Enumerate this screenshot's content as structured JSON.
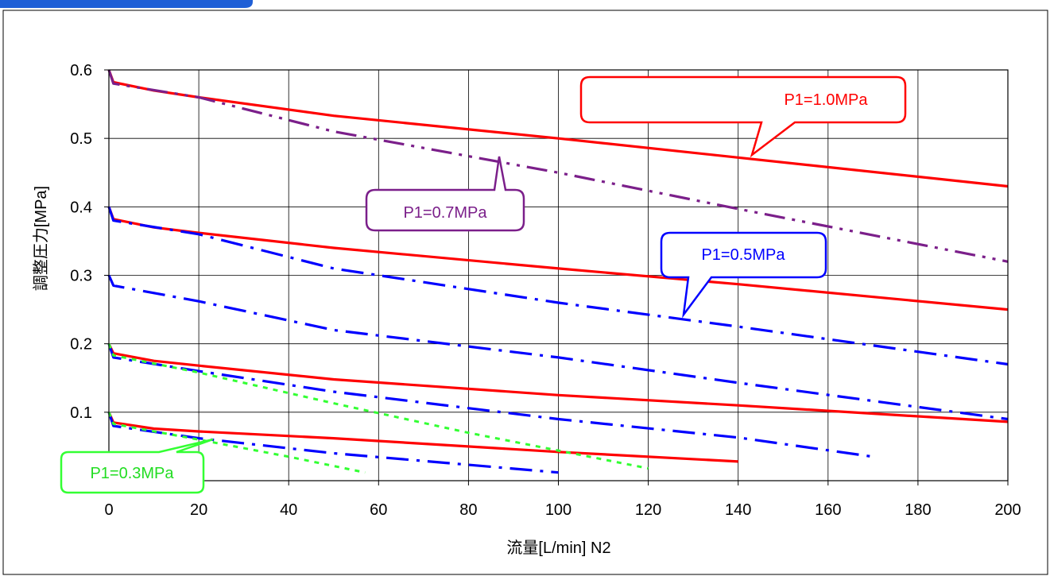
{
  "header_tab": "",
  "chart_data": {
    "type": "line",
    "title": "",
    "xlabel": "流量[L/min] N2",
    "ylabel": "調整圧力[MPa]",
    "xlim": [
      0,
      200
    ],
    "ylim": [
      0,
      0.6
    ],
    "x_ticks": [
      0,
      20,
      40,
      60,
      80,
      100,
      120,
      140,
      160,
      180,
      200
    ],
    "y_ticks": [
      0.1,
      0.2,
      0.3,
      0.4,
      0.5,
      0.6
    ],
    "y_tick_labels": [
      "0.1",
      "0.2",
      "0.3",
      "0.4",
      "0.5",
      "0.6"
    ],
    "grid": true,
    "colors": {
      "p1_1_0": "#ff0000",
      "p1_0_7": "#7b1f8a",
      "p1_0_5": "#0000ff",
      "p1_0_3": "#33ff33"
    },
    "series": [
      {
        "group": "p1_1_0",
        "style": "solid",
        "x": [
          0,
          1,
          10,
          20,
          50,
          100,
          140,
          200
        ],
        "y": [
          0.6,
          0.582,
          0.57,
          0.56,
          0.533,
          0.5,
          0.472,
          0.43
        ]
      },
      {
        "group": "p1_1_0",
        "style": "solid",
        "x": [
          0,
          1,
          10,
          20,
          50,
          100,
          140,
          200
        ],
        "y": [
          0.4,
          0.382,
          0.37,
          0.362,
          0.34,
          0.31,
          0.287,
          0.25
        ]
      },
      {
        "group": "p1_1_0",
        "style": "solid",
        "x": [
          0,
          1,
          10,
          20,
          50,
          100,
          140,
          200
        ],
        "y": [
          0.2,
          0.186,
          0.175,
          0.168,
          0.148,
          0.125,
          0.11,
          0.086
        ]
      },
      {
        "group": "p1_1_0",
        "style": "solid",
        "x": [
          0,
          1,
          10,
          20,
          50,
          100,
          140
        ],
        "y": [
          0.1,
          0.085,
          0.076,
          0.072,
          0.062,
          0.042,
          0.028
        ]
      },
      {
        "group": "p1_0_7",
        "style": "dashdotdot",
        "x": [
          0,
          1,
          20,
          50,
          100,
          140,
          200
        ],
        "y": [
          0.6,
          0.58,
          0.56,
          0.51,
          0.45,
          0.397,
          0.32
        ]
      },
      {
        "group": "p1_0_5",
        "style": "dashdot",
        "x": [
          0,
          1,
          20,
          50,
          100,
          140,
          200
        ],
        "y": [
          0.4,
          0.38,
          0.36,
          0.31,
          0.26,
          0.225,
          0.17
        ]
      },
      {
        "group": "p1_0_5",
        "style": "dashdot",
        "x": [
          0,
          1,
          20,
          50,
          100,
          140,
          200
        ],
        "y": [
          0.3,
          0.285,
          0.262,
          0.22,
          0.18,
          0.143,
          0.09
        ]
      },
      {
        "group": "p1_0_5",
        "style": "dashdot",
        "x": [
          0,
          1,
          20,
          50,
          100,
          140,
          170
        ],
        "y": [
          0.2,
          0.18,
          0.16,
          0.13,
          0.09,
          0.063,
          0.035
        ]
      },
      {
        "group": "p1_0_5",
        "style": "dashdot",
        "x": [
          0,
          1,
          20,
          50,
          75,
          100
        ],
        "y": [
          0.1,
          0.08,
          0.062,
          0.04,
          0.026,
          0.012
        ]
      },
      {
        "group": "p1_0_3",
        "style": "dotted",
        "x": [
          0,
          1,
          20,
          50,
          80,
          120
        ],
        "y": [
          0.2,
          0.183,
          0.158,
          0.113,
          0.07,
          0.018
        ]
      },
      {
        "group": "p1_0_3",
        "style": "dotted",
        "x": [
          0,
          1,
          20,
          40,
          57
        ],
        "y": [
          0.1,
          0.083,
          0.06,
          0.035,
          0.012
        ]
      }
    ],
    "annotations": [
      {
        "id": "p1-1-0",
        "text": "P1=1.0MPa",
        "group": "p1_1_0"
      },
      {
        "id": "p1-0-7",
        "text": "P1=0.7MPa",
        "group": "p1_0_7"
      },
      {
        "id": "p1-0-5",
        "text": "P1=0.5MPa",
        "group": "p1_0_5"
      },
      {
        "id": "p1-0-3",
        "text": "P1=0.3MPa",
        "group": "p1_0_3"
      }
    ]
  }
}
